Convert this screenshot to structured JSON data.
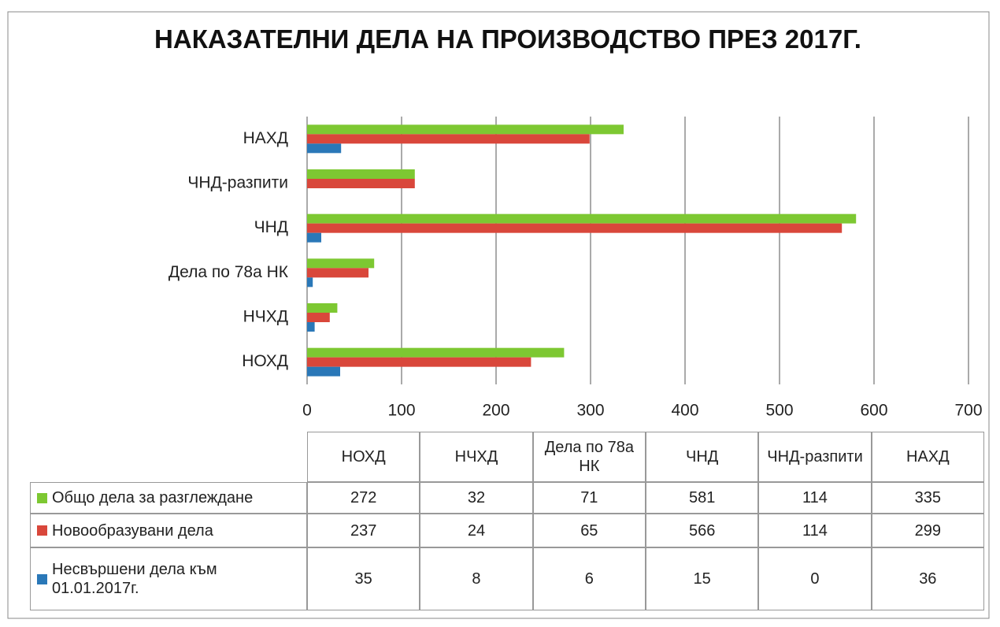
{
  "chart_data": {
    "type": "hbar",
    "title": "НАКАЗАТЕЛНИ ДЕЛА НА ПРОИЗВОДСТВО ПРЕЗ 2017Г.",
    "categories": [
      "НОХД",
      "НЧХД",
      "Дела по 78а НК",
      "ЧНД",
      "ЧНД-разпити",
      "НАХД"
    ],
    "series": [
      {
        "name": "Общо дела за разглеждане",
        "color": "#7dc832",
        "values": [
          272,
          32,
          71,
          581,
          114,
          335
        ]
      },
      {
        "name": "Новообразувани дела",
        "color": "#d9473b",
        "values": [
          237,
          24,
          65,
          566,
          114,
          299
        ]
      },
      {
        "name": "Несвършени дела към 01.01.2017г.",
        "color": "#2a78b8",
        "values": [
          35,
          8,
          6,
          15,
          0,
          36
        ]
      }
    ],
    "xlim": [
      0,
      700
    ],
    "xticks": [
      0,
      100,
      200,
      300,
      400,
      500,
      600,
      700
    ],
    "grid": true,
    "data_table": true
  }
}
